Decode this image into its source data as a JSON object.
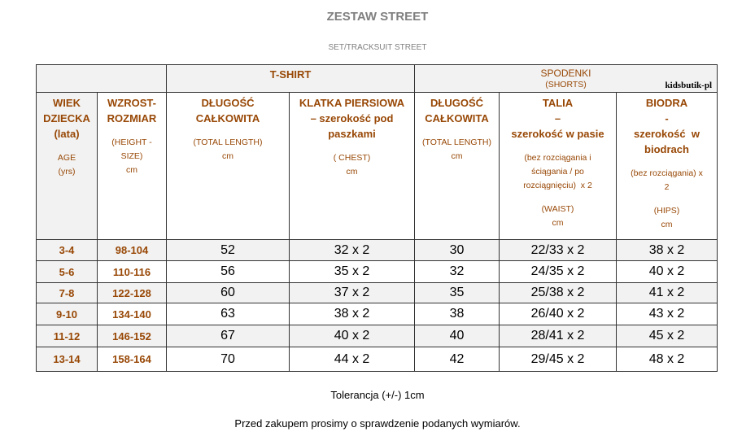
{
  "header": {
    "title": "ZESTAW STREET",
    "subtitle": "SET/TRACKSUIT STREET"
  },
  "table": {
    "groups": [
      {
        "label": "T-SHIRT"
      },
      {
        "label": "SPODENKI",
        "sublabel": "(SHORTS)",
        "note": "kidsbutik-pl"
      }
    ],
    "columns": [
      {
        "title": [
          "WIEK",
          "DZIECKA",
          "(lata)"
        ],
        "details": [
          [
            "AGE",
            "(yrs)"
          ]
        ]
      },
      {
        "title": [
          "WZROST-",
          "ROZMIAR"
        ],
        "details": [
          [
            "(HEIGHT -",
            "SIZE)",
            "cm"
          ]
        ]
      },
      {
        "title": [
          "DŁUGOŚĆ",
          "CAŁKOWITA"
        ],
        "details": [
          [
            "(TOTAL LENGTH)",
            "cm"
          ]
        ]
      },
      {
        "title": [
          "KLATKA PIERSIOWA",
          "– szerokość pod",
          "paszkami"
        ],
        "details": [
          [
            "( CHEST)",
            "cm"
          ]
        ]
      },
      {
        "title": [
          "DŁUGOŚĆ",
          "CAŁKOWITA"
        ],
        "details": [
          [
            "(TOTAL LENGTH)",
            "cm"
          ]
        ]
      },
      {
        "title": [
          "TALIA",
          "–",
          "szerokość w pasie"
        ],
        "details": [
          [
            "(bez rozciągania i",
            "ściągania / po",
            "rozciągnięciu)  x 2"
          ],
          [
            "(WAIST)",
            "cm"
          ]
        ]
      },
      {
        "title": [
          "BIODRA",
          "-",
          "szerokość  w",
          "biodrach"
        ],
        "details": [
          [
            "(bez rozciągania) x",
            "2"
          ],
          [
            "(HIPS)",
            "cm"
          ]
        ]
      }
    ],
    "rows": [
      [
        "3-4",
        "98-104",
        52,
        "32 x 2",
        30,
        "22/33 x 2",
        "38 x 2"
      ],
      [
        "5-6",
        "110-116",
        56,
        "35 x 2",
        32,
        "24/35 x 2",
        "40 x 2"
      ],
      [
        "7-8",
        "122-128",
        60,
        "37 x 2",
        35,
        "25/38 x 2",
        "41 x  2"
      ],
      [
        "9-10",
        "134-140",
        63,
        "38 x 2",
        38,
        "26/40 x 2",
        "43 x 2"
      ],
      [
        "11-12",
        "146-152",
        67,
        "40 x 2",
        40,
        "28/41 x 2",
        "45 x 2"
      ],
      [
        "13-14",
        "158-164",
        70,
        "44 x 2",
        42,
        "29/45 x 2",
        "48 x 2"
      ]
    ]
  },
  "footer": {
    "tolerance": "Tolerancja (+/-) 1cm",
    "note": "Przed zakupem prosimy o sprawdzenie podanych  wymiarów."
  }
}
